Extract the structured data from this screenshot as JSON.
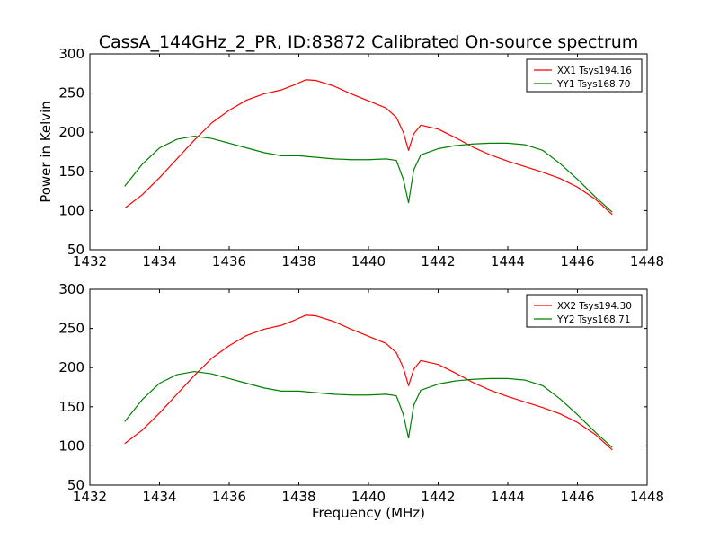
{
  "figure_title": "CassA_144GHz_2_PR, ID:83872 Calibrated On-source spectrum",
  "colors": {
    "xx": "#ff0000",
    "yy": "#008000"
  },
  "chart_data": [
    {
      "type": "line",
      "title": "CassA_144GHz_2_PR, ID:83872 Calibrated On-source spectrum",
      "xlabel": "",
      "ylabel": "Power in Kelvin",
      "xlim": [
        1432,
        1448
      ],
      "ylim": [
        50,
        300
      ],
      "xticks": [
        1432,
        1434,
        1436,
        1438,
        1440,
        1442,
        1444,
        1446,
        1448
      ],
      "yticks": [
        50,
        100,
        150,
        200,
        250,
        300
      ],
      "grid": false,
      "legend_position": "top-right",
      "series": [
        {
          "name": "XX1 Tsys194.16",
          "color": "#ff0000",
          "points": [
            [
              1433.0,
              103
            ],
            [
              1433.5,
              120
            ],
            [
              1434.0,
              142
            ],
            [
              1434.5,
              166
            ],
            [
              1435.0,
              190
            ],
            [
              1435.5,
              212
            ],
            [
              1436.0,
              228
            ],
            [
              1436.5,
              241
            ],
            [
              1437.0,
              249
            ],
            [
              1437.5,
              254
            ],
            [
              1437.9,
              261
            ],
            [
              1438.2,
              267
            ],
            [
              1438.5,
              266
            ],
            [
              1439.0,
              259
            ],
            [
              1439.5,
              249
            ],
            [
              1440.0,
              240
            ],
            [
              1440.5,
              231
            ],
            [
              1440.8,
              219
            ],
            [
              1441.0,
              200
            ],
            [
              1441.15,
              177
            ],
            [
              1441.3,
              198
            ],
            [
              1441.5,
              209
            ],
            [
              1442.0,
              204
            ],
            [
              1442.5,
              193
            ],
            [
              1443.0,
              181
            ],
            [
              1443.5,
              171
            ],
            [
              1444.0,
              163
            ],
            [
              1444.5,
              156
            ],
            [
              1445.0,
              149
            ],
            [
              1445.5,
              141
            ],
            [
              1446.0,
              130
            ],
            [
              1446.5,
              115
            ],
            [
              1447.0,
              95
            ]
          ]
        },
        {
          "name": "YY1 Tsys168.70",
          "color": "#008000",
          "points": [
            [
              1433.0,
              131
            ],
            [
              1433.5,
              159
            ],
            [
              1434.0,
              180
            ],
            [
              1434.5,
              191
            ],
            [
              1435.0,
              195
            ],
            [
              1435.5,
              192
            ],
            [
              1436.0,
              186
            ],
            [
              1436.5,
              180
            ],
            [
              1437.0,
              174
            ],
            [
              1437.5,
              170
            ],
            [
              1438.0,
              170
            ],
            [
              1438.5,
              168
            ],
            [
              1439.0,
              166
            ],
            [
              1439.5,
              165
            ],
            [
              1440.0,
              165
            ],
            [
              1440.5,
              166
            ],
            [
              1440.8,
              164
            ],
            [
              1441.0,
              140
            ],
            [
              1441.15,
              110
            ],
            [
              1441.3,
              152
            ],
            [
              1441.5,
              171
            ],
            [
              1442.0,
              179
            ],
            [
              1442.5,
              183
            ],
            [
              1443.0,
              185
            ],
            [
              1443.5,
              186
            ],
            [
              1444.0,
              186
            ],
            [
              1444.5,
              184
            ],
            [
              1445.0,
              177
            ],
            [
              1445.5,
              160
            ],
            [
              1446.0,
              140
            ],
            [
              1446.5,
              118
            ],
            [
              1447.0,
              98
            ]
          ]
        }
      ]
    },
    {
      "type": "line",
      "title": "",
      "xlabel": "Frequency (MHz)",
      "ylabel": "",
      "xlim": [
        1432,
        1448
      ],
      "ylim": [
        50,
        300
      ],
      "xticks": [
        1432,
        1434,
        1436,
        1438,
        1440,
        1442,
        1444,
        1446,
        1448
      ],
      "yticks": [
        50,
        100,
        150,
        200,
        250,
        300
      ],
      "grid": false,
      "legend_position": "top-right",
      "series": [
        {
          "name": "XX2 Tsys194.30",
          "color": "#ff0000",
          "points": [
            [
              1433.0,
              103
            ],
            [
              1433.5,
              120
            ],
            [
              1434.0,
              142
            ],
            [
              1434.5,
              166
            ],
            [
              1435.0,
              190
            ],
            [
              1435.5,
              212
            ],
            [
              1436.0,
              228
            ],
            [
              1436.5,
              241
            ],
            [
              1437.0,
              249
            ],
            [
              1437.5,
              254
            ],
            [
              1437.9,
              261
            ],
            [
              1438.2,
              267
            ],
            [
              1438.5,
              266
            ],
            [
              1439.0,
              259
            ],
            [
              1439.5,
              249
            ],
            [
              1440.0,
              240
            ],
            [
              1440.5,
              231
            ],
            [
              1440.8,
              219
            ],
            [
              1441.0,
              200
            ],
            [
              1441.15,
              177
            ],
            [
              1441.3,
              198
            ],
            [
              1441.5,
              209
            ],
            [
              1442.0,
              204
            ],
            [
              1442.5,
              193
            ],
            [
              1443.0,
              181
            ],
            [
              1443.5,
              171
            ],
            [
              1444.0,
              163
            ],
            [
              1444.5,
              156
            ],
            [
              1445.0,
              149
            ],
            [
              1445.5,
              141
            ],
            [
              1446.0,
              130
            ],
            [
              1446.5,
              115
            ],
            [
              1447.0,
              95
            ]
          ]
        },
        {
          "name": "YY2 Tsys168.71",
          "color": "#008000",
          "points": [
            [
              1433.0,
              131
            ],
            [
              1433.5,
              159
            ],
            [
              1434.0,
              180
            ],
            [
              1434.5,
              191
            ],
            [
              1435.0,
              195
            ],
            [
              1435.5,
              192
            ],
            [
              1436.0,
              186
            ],
            [
              1436.5,
              180
            ],
            [
              1437.0,
              174
            ],
            [
              1437.5,
              170
            ],
            [
              1438.0,
              170
            ],
            [
              1438.5,
              168
            ],
            [
              1439.0,
              166
            ],
            [
              1439.5,
              165
            ],
            [
              1440.0,
              165
            ],
            [
              1440.5,
              166
            ],
            [
              1440.8,
              164
            ],
            [
              1441.0,
              140
            ],
            [
              1441.15,
              110
            ],
            [
              1441.3,
              152
            ],
            [
              1441.5,
              171
            ],
            [
              1442.0,
              179
            ],
            [
              1442.5,
              183
            ],
            [
              1443.0,
              185
            ],
            [
              1443.5,
              186
            ],
            [
              1444.0,
              186
            ],
            [
              1444.5,
              184
            ],
            [
              1445.0,
              177
            ],
            [
              1445.5,
              160
            ],
            [
              1446.0,
              140
            ],
            [
              1446.5,
              118
            ],
            [
              1447.0,
              98
            ]
          ]
        }
      ]
    }
  ]
}
